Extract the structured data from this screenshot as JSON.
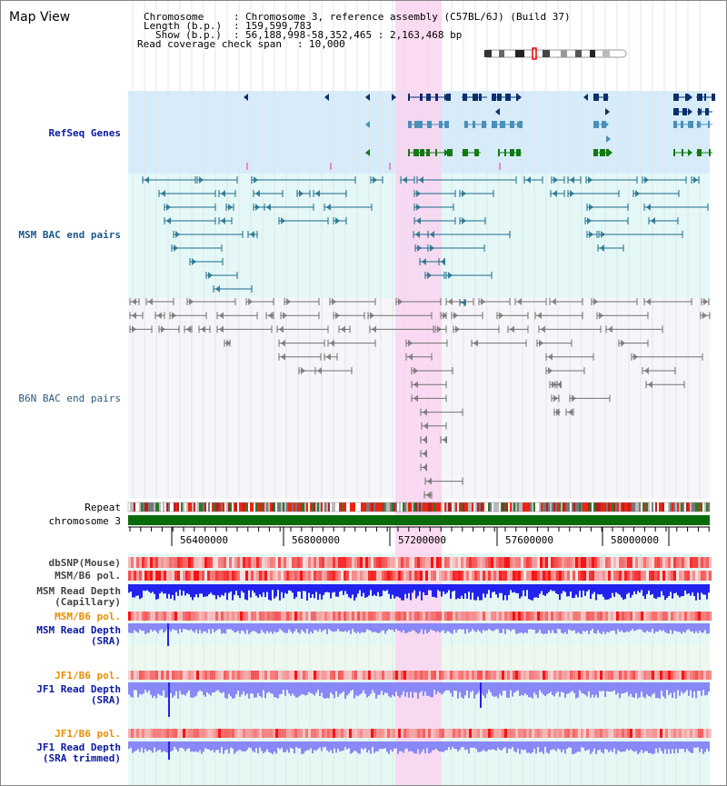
{
  "title": "Map View",
  "info": {
    "chromosome_label": "Chromosome",
    "chromosome_value": "Chromosome 3, reference assembly (C57BL/6J) (Build 37)",
    "length_label": "Length (b.p.)",
    "length_value": "159,599,783",
    "show_label": "Show (b.p.)",
    "show_value": "56,188,998-58,352,465 : 2,163,468 bp",
    "coverage_label": "Read coverage check span",
    "coverage_value": "10,000"
  },
  "tracks": {
    "refseq": "RefSeq Genes",
    "msm_bac": "MSM BAC end pairs",
    "b6n_bac": "B6N BAC end pairs",
    "repeat": "Repeat",
    "chromosome": "chromosome 3",
    "dbsnp": "dbSNP(Mouse)",
    "msm_b6_pol": "MSM/B6 pol.",
    "msm_depth_cap_1": "MSM Read Depth",
    "msm_depth_cap_2": "(Capillary)",
    "msm_b6_pol2": "MSM/B6 pol.",
    "msm_depth_sra_1": "MSM Read Depth",
    "msm_depth_sra_2": "(SRA)",
    "jf1_pol": "JF1/B6 pol.",
    "jf1_depth_1": "JF1 Read Depth",
    "jf1_depth_2": "(SRA)",
    "jf1_pol2": "JF1/B6 pol.",
    "jf1_trim_1": "JF1 Read Depth",
    "jf1_trim_2": "(SRA trimmed)"
  },
  "axis_ticks": [
    "56400000",
    "56800000",
    "57200000",
    "57600000",
    "58000000"
  ],
  "colors": {
    "refseq_bg": "#d6ecfa",
    "msm_bg": "#e4f8f8",
    "b6n_bg": "#f6f6fa",
    "highlight": "#f9d5f0",
    "refseq_dark": "#0b2f6b",
    "refseq_mid": "#4a90b8",
    "refseq_green": "#137a13",
    "msm_line": "#1c6a88",
    "b6n_line": "#707070",
    "chrom_green": "#0a6b0a",
    "label_blue": "#0a1aa0",
    "label_orange": "#e88e00",
    "label_teal": "#1a5a8a",
    "depth_blue": "#2222ee",
    "depth_light": "#8888f6"
  }
}
